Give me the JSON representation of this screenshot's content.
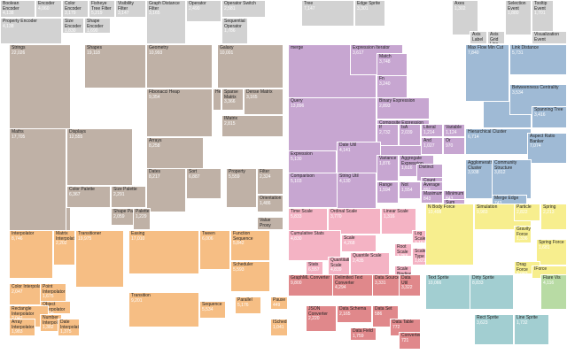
{
  "chart_data": {
    "type": "treemap",
    "title": "",
    "colors": {
      "gray": "#d2d2d2",
      "taupe": "#bfb1a6",
      "lavender": "#c7a6d1",
      "blue": "#9fbad5",
      "pink": "#f4b3c4",
      "orange": "#f6be84",
      "yellow": "#f7ee8e",
      "red": "#e0888b",
      "cyan": "#a2ced1",
      "green": "#b8dba4"
    },
    "cells": [
      {
        "name": "Boolean Encoder",
        "value": "4,138",
        "group": "gray"
      },
      {
        "name": "Encoder",
        "value": "4,060",
        "group": "gray"
      },
      {
        "name": "Color Encoder",
        "value": "3,179",
        "group": "gray"
      },
      {
        "name": "Size Encoder",
        "value": "1,830",
        "group": "gray"
      },
      {
        "name": "Shape Encoder",
        "value": "1,690",
        "group": "gray"
      },
      {
        "name": "Property Encoder",
        "value": "4,138",
        "group": "gray"
      },
      {
        "name": "Visibility Filter",
        "value": "3,147",
        "group": "gray"
      },
      {
        "name": "Fisheye Tree Filter",
        "value": "5,219",
        "group": "gray"
      },
      {
        "name": "Graph Distance Filter",
        "value": "3,165",
        "group": "gray"
      },
      {
        "name": "Operator",
        "value": "2,490",
        "group": "gray"
      },
      {
        "name": "Sequential Operator",
        "value": "1,786",
        "group": "gray"
      },
      {
        "name": "Operator Switch",
        "value": "2,581",
        "group": "gray"
      },
      {
        "name": "Tree",
        "value": "7,147",
        "group": "gray"
      },
      {
        "name": "Edge Sprite",
        "value": "3,301",
        "group": "gray"
      },
      {
        "name": "Axes",
        "value": "1,302",
        "group": "gray"
      },
      {
        "name": "Axis Label",
        "value": "",
        "group": "gray"
      },
      {
        "name": "Axis Grid Line",
        "value": "",
        "group": "gray"
      },
      {
        "name": "Selection Event",
        "value": "1,880",
        "group": "gray"
      },
      {
        "name": "Tooltip Event",
        "value": "1,701",
        "group": "gray"
      },
      {
        "name": "Visualization Event",
        "value": "",
        "group": "gray"
      },
      {
        "name": "Strings",
        "value": "22,026",
        "group": "taupe"
      },
      {
        "name": "Shapes",
        "value": "19,118",
        "group": "taupe"
      },
      {
        "name": "Geometry",
        "value": "10,993",
        "group": "taupe"
      },
      {
        "name": "Galaxy",
        "value": "10,001",
        "group": "taupe"
      },
      {
        "name": "Maths",
        "value": "17,705",
        "group": "taupe"
      },
      {
        "name": "Displays",
        "value": "12,555",
        "group": "taupe"
      },
      {
        "name": "Fibonacci Heap",
        "value": "9,354",
        "group": "taupe"
      },
      {
        "name": "Heap",
        "value": "",
        "group": "taupe"
      },
      {
        "name": "Sparse Matrix",
        "value": "3,366",
        "group": "taupe"
      },
      {
        "name": "Dense Matrix",
        "value": "3,165",
        "group": "taupe"
      },
      {
        "name": "IMatrix",
        "value": "2,815",
        "group": "taupe"
      },
      {
        "name": "Arrays",
        "value": "8,258",
        "group": "taupe"
      },
      {
        "name": "Sort",
        "value": "6,887",
        "group": "taupe"
      },
      {
        "name": "Dates",
        "value": "8,217",
        "group": "taupe"
      },
      {
        "name": "Property",
        "value": "5,559",
        "group": "taupe"
      },
      {
        "name": "Filter",
        "value": "2,324",
        "group": "taupe"
      },
      {
        "name": "Color Palette",
        "value": "6,367",
        "group": "taupe"
      },
      {
        "name": "Size Palette",
        "value": "2,291",
        "group": "taupe"
      },
      {
        "name": "Shape Palette",
        "value": "2,059",
        "group": "taupe"
      },
      {
        "name": "Palette",
        "value": "1,229",
        "group": "taupe"
      },
      {
        "name": "Orientation",
        "value": "1,486",
        "group": "taupe"
      },
      {
        "name": "Value Proxy",
        "value": "",
        "group": "taupe"
      },
      {
        "name": "merge",
        "value": "",
        "group": "lavender"
      },
      {
        "name": "Expression Iterator",
        "value": "3,617",
        "group": "lavender"
      },
      {
        "name": "Link Distance",
        "value": "5,731",
        "group": "blue"
      },
      {
        "name": "Match",
        "value": "3,748",
        "group": "lavender"
      },
      {
        "name": "Fn",
        "value": "3,240",
        "group": "lavender"
      },
      {
        "name": "Binary Expression",
        "value": "2,893",
        "group": "lavender"
      },
      {
        "name": "Query",
        "value": "13,896",
        "group": "lavender"
      },
      {
        "name": "Composite Expression",
        "value": "3,677",
        "group": "lavender"
      },
      {
        "name": "If",
        "value": "2,732",
        "group": "lavender"
      },
      {
        "name": "IsA",
        "value": "2,039",
        "group": "lavender"
      },
      {
        "name": "Literal",
        "value": "1,214",
        "group": "lavender"
      },
      {
        "name": "Variable",
        "value": "1,124",
        "group": "lavender"
      },
      {
        "name": "Xor",
        "value": "1,101",
        "group": "lavender"
      },
      {
        "name": "And",
        "value": "1,027",
        "group": "lavender"
      },
      {
        "name": "Or",
        "value": "970",
        "group": "lavender"
      },
      {
        "name": "Expression",
        "value": "5,130",
        "group": "lavender"
      },
      {
        "name": "Date Util",
        "value": "4,141",
        "group": "lavender"
      },
      {
        "name": "Variance",
        "value": "1,876",
        "group": "lavender"
      },
      {
        "name": "Aggregate Expression",
        "value": "1,616",
        "group": "lavender"
      },
      {
        "name": "Distinct",
        "value": "",
        "group": "lavender"
      },
      {
        "name": "Count",
        "value": "",
        "group": "lavender"
      },
      {
        "name": "Comparison",
        "value": "5,103",
        "group": "lavender"
      },
      {
        "name": "String Util",
        "value": "4,130",
        "group": "lavender"
      },
      {
        "name": "Range",
        "value": "1,594",
        "group": "lavender"
      },
      {
        "name": "Not",
        "value": "1,554",
        "group": "lavender"
      },
      {
        "name": "Average",
        "value": "891",
        "group": "lavender"
      },
      {
        "name": "Maximum",
        "value": "843",
        "group": "lavender"
      },
      {
        "name": "Minimum",
        "value": "843",
        "group": "lavender"
      },
      {
        "name": "Sum",
        "value": "791",
        "group": "lavender"
      },
      {
        "name": "Shortest Paths",
        "value": "5,914",
        "group": "blue"
      },
      {
        "name": "Betweenness Centrality",
        "value": "3,534",
        "group": "blue"
      },
      {
        "name": "Spanning Tree",
        "value": "3,416",
        "group": "blue"
      },
      {
        "name": "Hierarchical Cluster",
        "value": "6,714",
        "group": "blue"
      },
      {
        "name": "Aspect Ratio Banker",
        "value": "7,074",
        "group": "blue"
      },
      {
        "name": "Agglomerative Cluster",
        "value": "3,938",
        "group": "blue"
      },
      {
        "name": "Community Structure",
        "value": "3,812",
        "group": "blue"
      },
      {
        "name": "Merge Edge",
        "value": "743",
        "group": "blue"
      },
      {
        "name": "Max Flow Min Cut",
        "value": "7,840",
        "group": "blue"
      },
      {
        "name": "Time Scale",
        "value": "5,833",
        "group": "pink"
      },
      {
        "name": "Ordinal Scale",
        "value": "3,770",
        "group": "pink"
      },
      {
        "name": "Scale",
        "value": "4,268",
        "group": "pink"
      },
      {
        "name": "Linear Scale",
        "value": "1,316",
        "group": "pink"
      },
      {
        "name": "Log Scale",
        "value": "3,151",
        "group": "pink"
      },
      {
        "name": "Root Scale",
        "value": "1,756",
        "group": "pink"
      },
      {
        "name": "Quantile Scale",
        "value": "2,435",
        "group": "pink"
      },
      {
        "name": "Cumulative Stats",
        "value": "4,830",
        "group": "pink"
      },
      {
        "name": "Stats",
        "value": "6,557",
        "group": "pink"
      },
      {
        "name": "Quantitative Scale",
        "value": "4,839",
        "group": "pink"
      },
      {
        "name": "Scale Type",
        "value": "1,821",
        "group": "pink"
      },
      {
        "name": "Scale Binding",
        "value": "",
        "group": "pink"
      },
      {
        "name": "Simulation",
        "value": "9,983",
        "group": "yellow"
      },
      {
        "name": "Particle",
        "value": "2,822",
        "group": "yellow"
      },
      {
        "name": "Spring",
        "value": "2,213",
        "group": "yellow"
      },
      {
        "name": "Gravity Force",
        "value": "1,336",
        "group": "yellow"
      },
      {
        "name": "Spring Force",
        "value": "1,681",
        "group": "yellow"
      },
      {
        "name": "Drag Force",
        "value": "1,082",
        "group": "yellow"
      },
      {
        "name": "N Body Force",
        "value": "10,498",
        "group": "yellow"
      },
      {
        "name": "IForce",
        "value": "",
        "group": "yellow"
      },
      {
        "name": "Interpolator",
        "value": "8,746",
        "group": "orange"
      },
      {
        "name": "Matrix Interpolator",
        "value": "2,202",
        "group": "orange"
      },
      {
        "name": "Transitioner",
        "value": "19,975",
        "group": "orange"
      },
      {
        "name": "Easing",
        "value": "17,010",
        "group": "orange"
      },
      {
        "name": "Tween",
        "value": "6,006",
        "group": "orange"
      },
      {
        "name": "Function Sequence",
        "value": "5,842",
        "group": "orange"
      },
      {
        "name": "Scheduler",
        "value": "5,593",
        "group": "orange"
      },
      {
        "name": "Color Interpolator",
        "value": "2,047",
        "group": "orange"
      },
      {
        "name": "Point Interpolator",
        "value": "1,675",
        "group": "orange"
      },
      {
        "name": "Object Interpolator",
        "value": "1,629",
        "group": "orange"
      },
      {
        "name": "Rectangle Interpolator",
        "value": "2,042",
        "group": "orange"
      },
      {
        "name": "Number Interpolator",
        "value": "1,382",
        "group": "orange"
      },
      {
        "name": "Array Interpolator",
        "value": "1,983",
        "group": "orange"
      },
      {
        "name": "Date Interpolator",
        "value": "1,375",
        "group": "orange"
      },
      {
        "name": "Transition",
        "value": "9,201",
        "group": "orange"
      },
      {
        "name": "Sequence",
        "value": "5,534",
        "group": "orange"
      },
      {
        "name": "Parallel",
        "value": "5,176",
        "group": "orange"
      },
      {
        "name": "Pause",
        "value": "449",
        "group": "orange"
      },
      {
        "name": "ISchedulable",
        "value": "1,041",
        "group": "orange"
      },
      {
        "name": "GraphML Converter",
        "value": "9,800",
        "group": "red"
      },
      {
        "name": "Delimited Text Converter",
        "value": "4,294",
        "group": "red"
      },
      {
        "name": "Data Source",
        "value": "3,331",
        "group": "red"
      },
      {
        "name": "Data Util",
        "value": "3,322",
        "group": "red"
      },
      {
        "name": "JSON Converter",
        "value": "2,220",
        "group": "red"
      },
      {
        "name": "Data Schema",
        "value": "2,165",
        "group": "red"
      },
      {
        "name": "Data Field",
        "value": "1,759",
        "group": "red"
      },
      {
        "name": "Data Set",
        "value": "586",
        "group": "red"
      },
      {
        "name": "Data Table",
        "value": "772",
        "group": "red"
      },
      {
        "name": "Converters",
        "value": "721",
        "group": "red"
      },
      {
        "name": "Text Sprite",
        "value": "10,066",
        "group": "cyan"
      },
      {
        "name": "Dirty Sprite",
        "value": "8,833",
        "group": "cyan"
      },
      {
        "name": "Rect Sprite",
        "value": "3,623",
        "group": "cyan"
      },
      {
        "name": "Line Sprite",
        "value": "1,732",
        "group": "cyan"
      },
      {
        "name": "Flare Vis",
        "value": "4,116",
        "group": "green"
      }
    ]
  }
}
